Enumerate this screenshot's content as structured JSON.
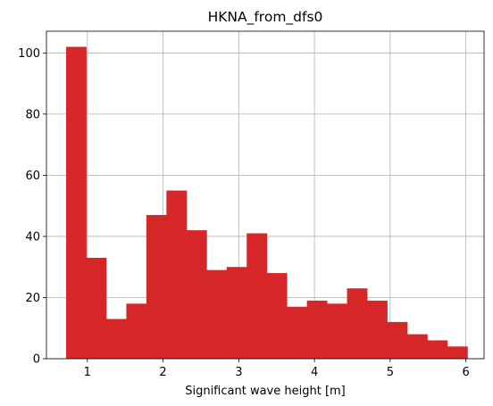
{
  "chart_data": {
    "type": "bar",
    "title": "HKNA_from_dfs0",
    "xlabel": "Significant wave height [m]",
    "ylabel": "",
    "xlim": [
      0.46,
      6.24
    ],
    "ylim": [
      0,
      107.1
    ],
    "xticks": [
      1,
      2,
      3,
      4,
      5,
      6
    ],
    "yticks": [
      0,
      20,
      40,
      60,
      80,
      100
    ],
    "grid": true,
    "bar_color": "#d62728",
    "bin_edges": [
      0.72,
      0.985,
      1.25,
      1.515,
      1.78,
      2.045,
      2.31,
      2.575,
      2.84,
      3.105,
      3.37,
      3.635,
      3.9,
      4.165,
      4.43,
      4.695,
      4.96,
      5.225,
      5.49,
      5.755,
      6.02
    ],
    "values": [
      102,
      33,
      13,
      18,
      47,
      55,
      42,
      29,
      30,
      41,
      28,
      17,
      19,
      18,
      23,
      19,
      12,
      8,
      6,
      4
    ]
  }
}
